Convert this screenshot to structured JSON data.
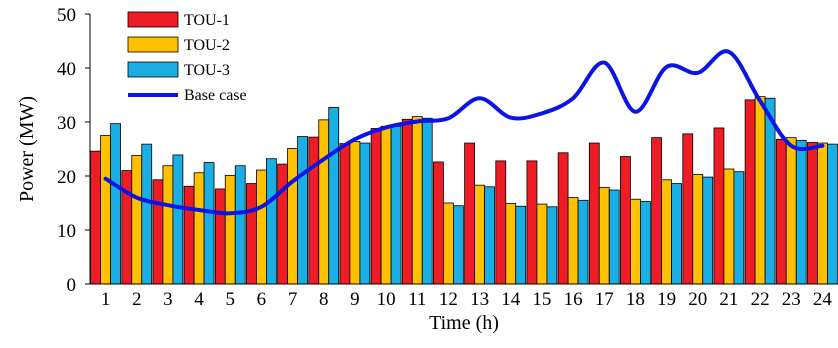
{
  "chart_data": {
    "type": "bar",
    "title": "",
    "xlabel": "Time (h)",
    "ylabel": "Power (MW)",
    "ylim": [
      0,
      50
    ],
    "yticks": [
      0,
      10,
      20,
      30,
      40,
      50
    ],
    "categories": [
      "1",
      "2",
      "3",
      "4",
      "5",
      "6",
      "7",
      "8",
      "9",
      "10",
      "11",
      "12",
      "13",
      "14",
      "15",
      "16",
      "17",
      "18",
      "19",
      "20",
      "21",
      "22",
      "23",
      "24"
    ],
    "series": [
      {
        "name": "TOU-1",
        "type": "bar",
        "color": "#ee1c25",
        "values": [
          24.6,
          21.0,
          19.3,
          18.1,
          17.6,
          18.6,
          22.2,
          27.2,
          26.0,
          28.8,
          30.5,
          22.6,
          26.1,
          22.8,
          22.8,
          24.3,
          26.1,
          23.6,
          27.1,
          27.8,
          28.9,
          34.1,
          26.8,
          26.2
        ]
      },
      {
        "name": "TOU-2",
        "type": "bar",
        "color": "#ffc000",
        "values": [
          27.5,
          23.8,
          21.9,
          20.6,
          20.1,
          21.1,
          25.1,
          30.4,
          26.4,
          29.2,
          31.0,
          15.0,
          18.3,
          14.9,
          14.8,
          16.0,
          17.9,
          15.7,
          19.3,
          20.3,
          21.3,
          34.7,
          27.1,
          26.1
        ]
      },
      {
        "name": "TOU-3",
        "type": "bar",
        "color": "#1aaee5",
        "values": [
          29.7,
          25.9,
          23.9,
          22.5,
          21.9,
          23.2,
          27.3,
          32.7,
          26.1,
          29.2,
          30.7,
          14.5,
          18.0,
          14.4,
          14.3,
          15.5,
          17.4,
          15.3,
          18.6,
          19.8,
          20.8,
          34.4,
          26.6,
          25.9
        ]
      },
      {
        "name": "Base case",
        "type": "line",
        "color": "#0a14e6",
        "values": [
          19.5,
          16.0,
          14.6,
          13.7,
          13.1,
          14.3,
          19.0,
          23.1,
          26.8,
          29.0,
          30.1,
          30.7,
          34.4,
          30.8,
          31.6,
          34.4,
          41.0,
          31.9,
          40.2,
          39.1,
          43.0,
          33.9,
          25.6,
          25.6
        ]
      }
    ],
    "legend": {
      "placement": "top-left",
      "entries": [
        "TOU-1",
        "TOU-2",
        "TOU-3",
        "Base case"
      ]
    },
    "grid": false
  }
}
